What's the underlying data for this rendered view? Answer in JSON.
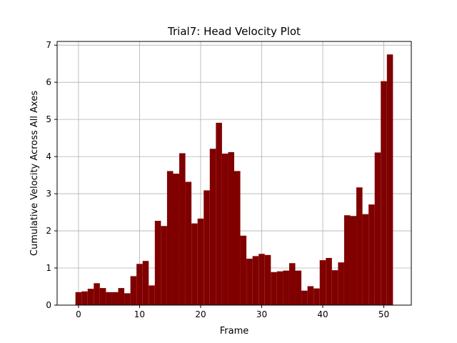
{
  "chart_data": {
    "type": "bar",
    "title": "Trial7: Head Velocity Plot",
    "xlabel": "Frame",
    "ylabel": "Cumulative Velocity Across All Axes",
    "x": [
      0,
      1,
      2,
      3,
      4,
      5,
      6,
      7,
      8,
      9,
      10,
      11,
      12,
      13,
      14,
      15,
      16,
      17,
      18,
      19,
      20,
      21,
      22,
      23,
      24,
      25,
      26,
      27,
      28,
      29,
      30,
      31,
      32,
      33,
      34,
      35,
      36,
      37,
      38,
      39,
      40,
      41,
      42,
      43,
      44,
      45,
      46,
      47,
      48,
      49,
      50,
      51
    ],
    "values": [
      0.35,
      0.37,
      0.44,
      0.59,
      0.46,
      0.35,
      0.35,
      0.46,
      0.32,
      0.78,
      1.11,
      1.19,
      0.53,
      2.27,
      2.13,
      3.61,
      3.54,
      4.09,
      3.32,
      2.2,
      2.33,
      3.09,
      4.21,
      4.91,
      4.08,
      4.12,
      3.61,
      1.87,
      1.25,
      1.32,
      1.38,
      1.35,
      0.89,
      0.91,
      0.93,
      1.13,
      0.93,
      0.39,
      0.51,
      0.45,
      1.21,
      1.27,
      0.94,
      1.15,
      2.42,
      2.4,
      3.17,
      2.45,
      2.71,
      4.11,
      6.03,
      6.75
    ],
    "xlim": [
      -3.5,
      54.5
    ],
    "ylim": [
      0,
      7.1
    ],
    "xticks": [
      0,
      10,
      20,
      30,
      40,
      50
    ],
    "yticks": [
      0,
      1,
      2,
      3,
      4,
      5,
      6,
      7
    ],
    "grid": true,
    "bar_color": "#800000"
  }
}
